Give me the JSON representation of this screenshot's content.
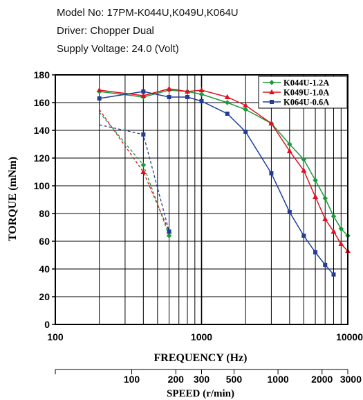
{
  "header": {
    "model": "Model No: 17PM-K044U,K049U,K064U",
    "driver": "Driver: Chopper Dual",
    "supply": "Supply Voltage: 24.0 (Volt)"
  },
  "chart_data": {
    "type": "line",
    "xlabel": "FREQUENCY (Hz)",
    "ylabel": "TORQUE (mNm)",
    "x_scale": "log",
    "xlim": [
      100,
      10000
    ],
    "ylim": [
      0,
      180
    ],
    "grid": true,
    "legend_position": "top-right",
    "y_ticks": [
      0,
      20,
      40,
      60,
      80,
      100,
      120,
      140,
      160,
      180
    ],
    "x_ticks": [
      100,
      1000,
      10000
    ],
    "x_tick_labels": [
      "100",
      "1000",
      "10000"
    ],
    "speed_axis": {
      "label": "SPEED (r/min)",
      "ticks": [
        {
          "label": "100",
          "hz": 333
        },
        {
          "label": "200",
          "hz": 667
        },
        {
          "label": "300",
          "hz": 1000
        },
        {
          "label": "500",
          "hz": 1667
        },
        {
          "label": "1000",
          "hz": 3333
        },
        {
          "label": "2000",
          "hz": 6667
        },
        {
          "label": "3000",
          "hz": 10000
        }
      ]
    },
    "series": [
      {
        "name": "K044U-1.2A",
        "color": "#1a9a3a",
        "marker": "diamond",
        "x": [
          200,
          400,
          600,
          800,
          1000,
          1500,
          2000,
          3000,
          4000,
          5000,
          6000,
          7000,
          8000,
          9000,
          10000
        ],
        "y": [
          168,
          164,
          169,
          168,
          166,
          160,
          155,
          145,
          130,
          119,
          104,
          91,
          78,
          69,
          64
        ],
        "pullin_x": [
          200,
          400,
          600
        ],
        "pullin_y": [
          153,
          115,
          64
        ]
      },
      {
        "name": "K049U-1.0A",
        "color": "#e0101e",
        "marker": "triangle",
        "x": [
          200,
          400,
          600,
          800,
          1000,
          1500,
          2000,
          3000,
          4000,
          5000,
          6000,
          7000,
          8000,
          9000,
          10000
        ],
        "y": [
          169,
          165,
          170,
          168,
          169,
          164,
          158,
          145,
          125,
          111,
          92,
          76,
          67,
          58,
          53
        ],
        "pullin_x": [
          200,
          400,
          600
        ],
        "pullin_y": [
          155,
          110,
          67
        ]
      },
      {
        "name": "K064U-0.6A",
        "color": "#1f3d99",
        "marker": "square",
        "x": [
          200,
          400,
          600,
          800,
          1000,
          1500,
          2000,
          3000,
          4000,
          5000,
          6000,
          7000,
          8000
        ],
        "y": [
          163,
          168,
          164,
          164,
          161,
          152,
          139,
          109,
          81,
          64,
          52,
          43,
          36
        ],
        "pullin_x": [
          200,
          400,
          600
        ],
        "pullin_y": [
          144,
          137,
          67
        ]
      }
    ]
  }
}
